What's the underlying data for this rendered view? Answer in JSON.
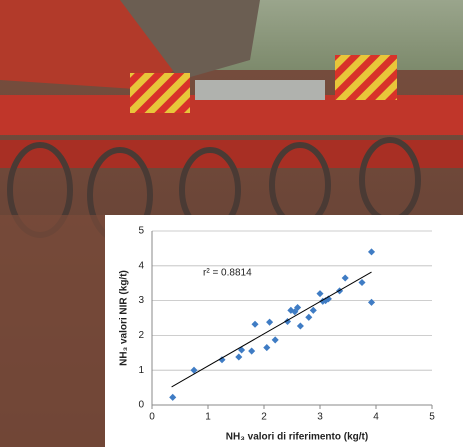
{
  "chart_data": {
    "type": "scatter",
    "x_label": "NH₃ valori di riferimento (kg/t)",
    "y_label": "NH₃ valori NIR (kg/t)",
    "annotation": "r² = 0.8814",
    "color": "#3f7cc4",
    "x": [
      0.37,
      0.75,
      1.25,
      1.55,
      1.6,
      1.78,
      1.84,
      2.05,
      2.1,
      2.2,
      2.42,
      2.48,
      2.55,
      2.6,
      2.65,
      2.8,
      2.88,
      3.0,
      3.05,
      3.1,
      3.15,
      3.35,
      3.45,
      3.75,
      3.92,
      3.92
    ],
    "y": [
      0.22,
      1.0,
      1.3,
      1.38,
      1.58,
      1.55,
      2.32,
      1.65,
      2.38,
      1.87,
      2.4,
      2.72,
      2.68,
      2.8,
      2.27,
      2.52,
      2.72,
      3.2,
      2.98,
      3.0,
      3.05,
      3.28,
      3.65,
      3.52,
      4.4,
      2.95
    ],
    "trendline": {
      "x": [
        0.35,
        3.92
      ],
      "y": [
        0.52,
        3.82
      ],
      "color": "#000000"
    },
    "xlim": [
      0,
      5
    ],
    "ylim": [
      0,
      5
    ],
    "xticks": [
      0,
      1,
      2,
      3,
      4,
      5
    ],
    "yticks": [
      0,
      1,
      2,
      3,
      4,
      5
    ],
    "grid": true
  }
}
